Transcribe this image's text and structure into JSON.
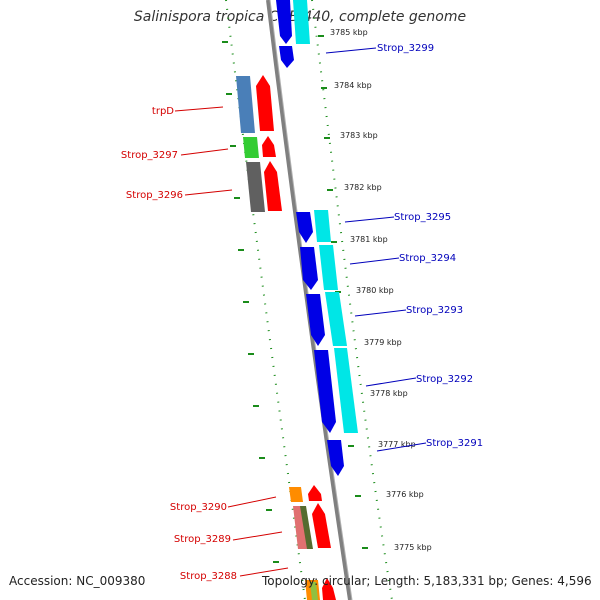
{
  "title": "Salinispora tropica CNB-440, complete genome",
  "accession_text": "Accession: NC_009380",
  "stats_text": "Topology: circular; Length: 5,183,331 bp; Genes: 4,596",
  "colors": {
    "backbone": "#808080",
    "track_dots": "#1a8c1a",
    "forward_gene": "#0000e6",
    "forward_cds": "#00e6e6",
    "reverse_label": "#d40000",
    "forward_label": "#0000bb"
  },
  "kbp_ticks": [
    "3785 kbp",
    "3784 kbp",
    "3783 kbp",
    "3782 kbp",
    "3781 kbp",
    "3780 kbp",
    "3779 kbp",
    "3778 kbp",
    "3777 kbp",
    "3776 kbp",
    "3775 kbp"
  ],
  "right_labels": [
    "Strop_3299",
    "Strop_3295",
    "Strop_3294",
    "Strop_3293",
    "Strop_3292",
    "Strop_3291"
  ],
  "left_labels": [
    "trpD",
    "Strop_3297",
    "Strop_3296",
    "Strop_3290",
    "Strop_3289",
    "Strop_3288"
  ]
}
